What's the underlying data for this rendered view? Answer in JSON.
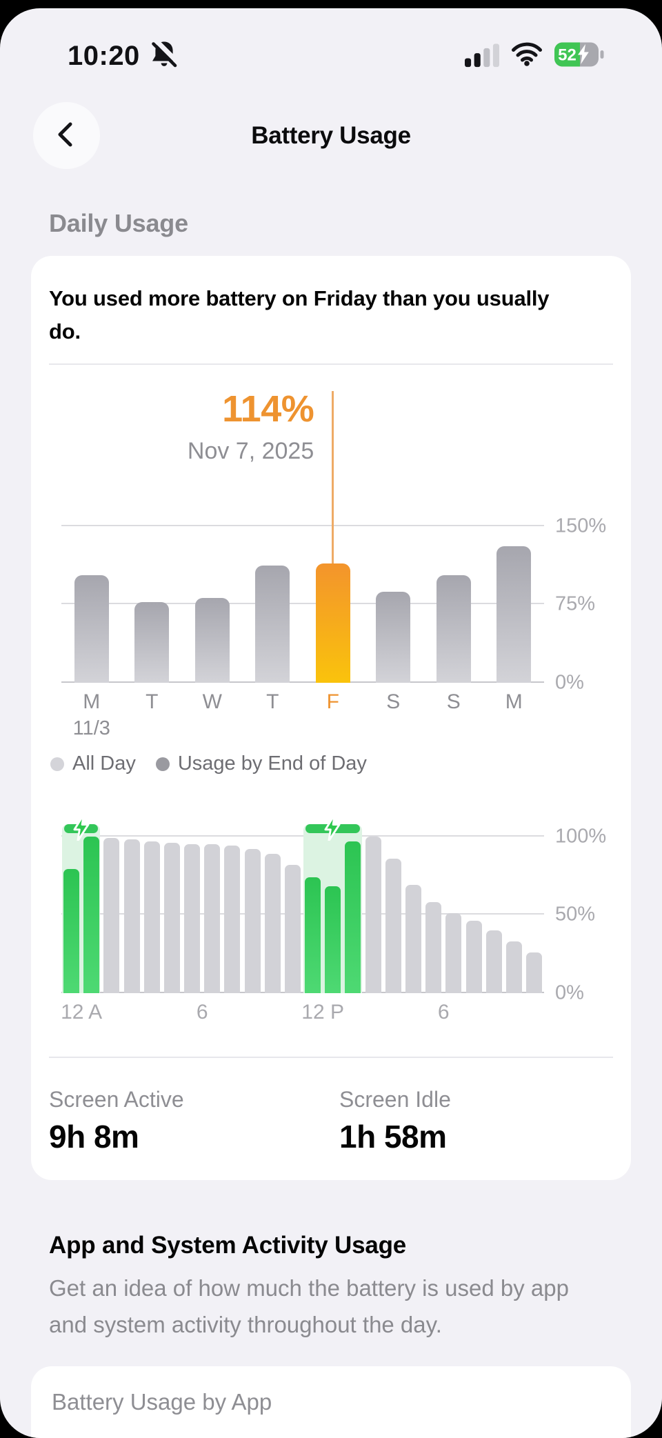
{
  "device": {
    "time": "10:20",
    "battery_level": "52"
  },
  "nav": {
    "title": "Battery Usage"
  },
  "sections": {
    "daily_usage_header": "Daily Usage",
    "activity_title": "App and System Activity Usage",
    "activity_description": "Get an idea of how much the battery is used by app and system activity throughout the day.",
    "battery_by_app_row": "Battery Usage by App"
  },
  "usage_card": {
    "headline": "You used more battery on Friday than you usually do.",
    "screen_active": {
      "label": "Screen Active",
      "value": "9h 8m"
    },
    "screen_idle": {
      "label": "Screen Idle",
      "value": "1h 58m"
    }
  },
  "chart_data": [
    {
      "type": "bar",
      "title": "Daily battery usage, last 8 days",
      "categories": [
        "M",
        "T",
        "W",
        "T",
        "F",
        "S",
        "S",
        "M"
      ],
      "category_sub_labels": [
        "11/3",
        "",
        "",
        "",
        "",
        "",
        "",
        ""
      ],
      "values": [
        103,
        77,
        81,
        112,
        114,
        87,
        103,
        131
      ],
      "unit": "%",
      "highlight": {
        "index": 4,
        "value_label": "114%",
        "date_label": "Nov 7, 2025"
      },
      "y_ticks": [
        {
          "value": 0,
          "label": "0%"
        },
        {
          "value": 75,
          "label": "75%"
        },
        {
          "value": 150,
          "label": "150%"
        }
      ],
      "ylim": [
        0,
        175
      ],
      "grid": true,
      "legend_position": "bottom-left",
      "legend": [
        {
          "label": "All Day",
          "swatch": "#d4d4d9"
        },
        {
          "label": "Usage by End of Day",
          "swatch": "#9a9aa0"
        }
      ],
      "bar_colors": {
        "default": "gray-gradient #a6a6ae-#d3d3d8",
        "highlight": "orange-gradient #f3942c-#fac30c"
      }
    },
    {
      "type": "bar",
      "title": "Battery level by hour",
      "x_ticks": [
        {
          "hour": 0,
          "label": "12 A"
        },
        {
          "hour": 6,
          "label": "6"
        },
        {
          "hour": 12,
          "label": "12 P"
        },
        {
          "hour": 18,
          "label": "6"
        }
      ],
      "values": [
        79,
        100,
        99,
        98,
        97,
        96,
        95,
        95,
        94,
        92,
        89,
        82,
        74,
        68,
        97,
        100,
        86,
        69,
        58,
        51,
        46,
        40,
        33,
        26
      ],
      "unit": "%",
      "charging_hours": [
        0,
        1,
        12,
        13,
        14
      ],
      "charge_zones": [
        {
          "start_hour": 0,
          "end_hour": 2
        },
        {
          "start_hour": 12,
          "end_hour": 15
        }
      ],
      "zone_top_value": 108,
      "y_ticks": [
        {
          "value": 0,
          "label": "0%"
        },
        {
          "value": 50,
          "label": "50%"
        },
        {
          "value": 100,
          "label": "100%"
        }
      ],
      "ylim": [
        0,
        110
      ],
      "grid": true,
      "bar_colors": {
        "default": "#d2d2d7",
        "charging": "green-gradient #2cc452-#4ed973",
        "zone_fill": "#dcf3e2",
        "zone_cap": "#33c659"
      }
    }
  ],
  "colors": {
    "background": "#f2f1f6",
    "card": "#ffffff",
    "accent_orange": "#ee9330",
    "accent_green": "#34c759",
    "text_secondary": "#8e8e93"
  }
}
